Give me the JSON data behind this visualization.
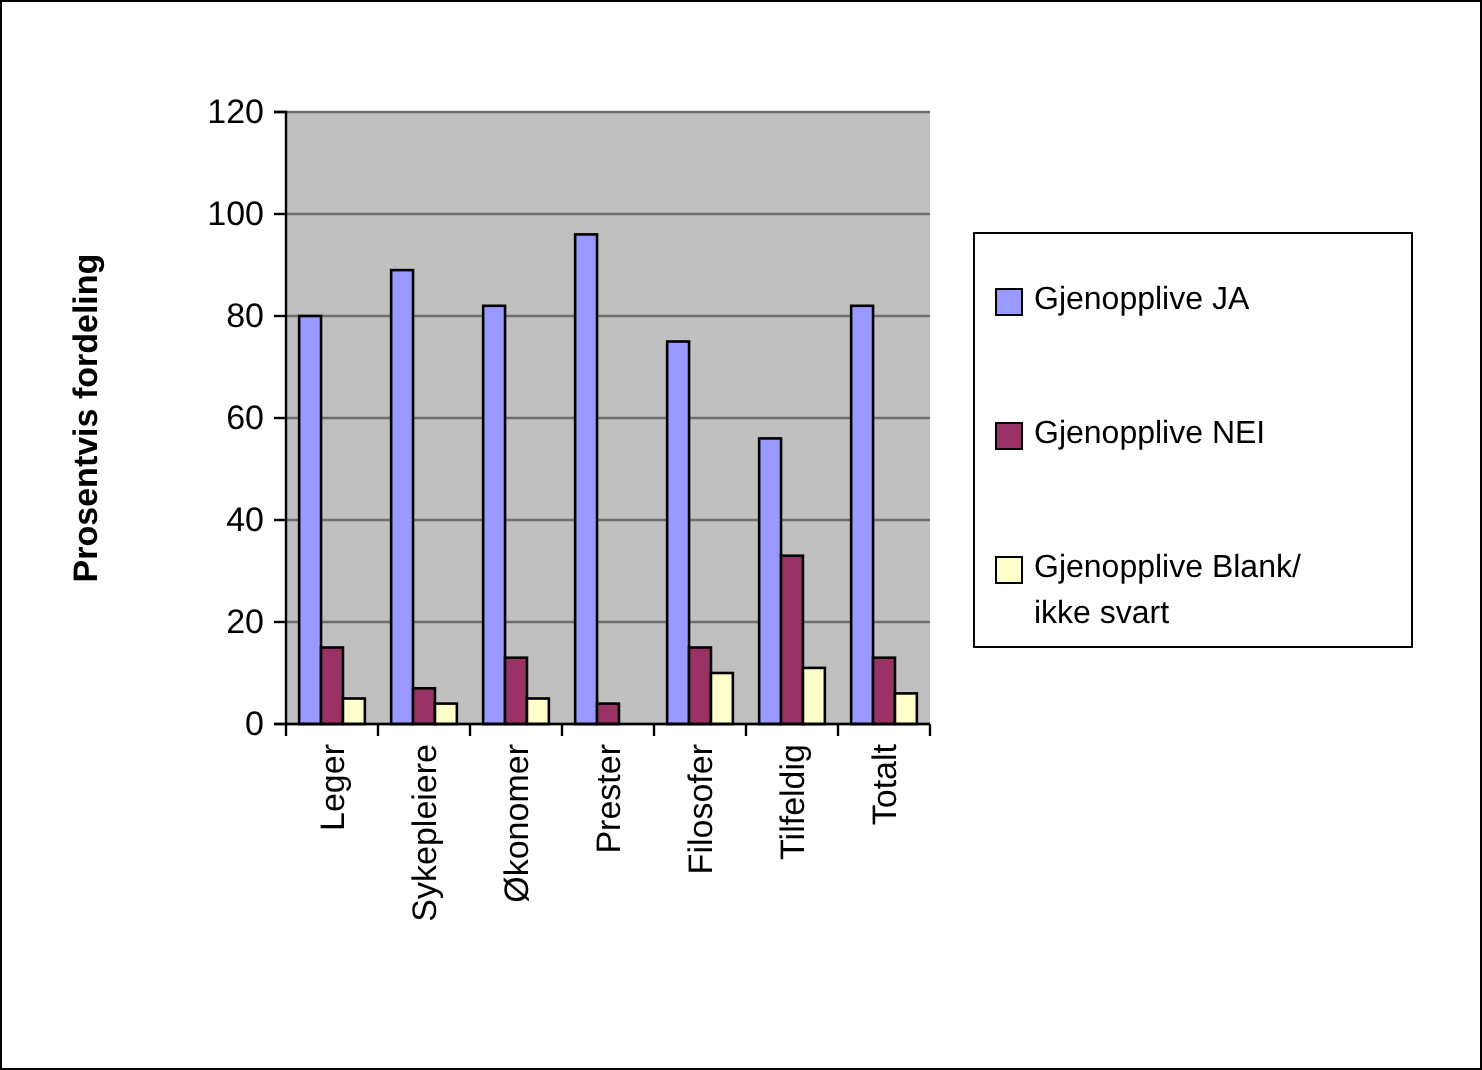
{
  "chart_data": {
    "type": "bar",
    "ylabel": "Prosentvis fordeling",
    "categories": [
      "Leger",
      "Sykepleiere",
      "Økonomer",
      "Prester",
      "Filosofer",
      "Tilfeldig",
      "Totalt"
    ],
    "series": [
      {
        "name": "Gjenopplive JA",
        "color": "#9999ff",
        "values": [
          80,
          89,
          82,
          96,
          75,
          56,
          82
        ]
      },
      {
        "name": "Gjenopplive NEI",
        "color": "#993366",
        "values": [
          15,
          7,
          13,
          4,
          15,
          33,
          13
        ]
      },
      {
        "name": "Gjenopplive Blank/ ikke svart",
        "color": "#ffffcc",
        "values": [
          5,
          4,
          5,
          0,
          10,
          11,
          6
        ]
      }
    ],
    "ylim": [
      0,
      120
    ],
    "yticks": [
      0,
      20,
      40,
      60,
      80,
      100,
      120
    ],
    "grid": "y",
    "legend": "right"
  }
}
